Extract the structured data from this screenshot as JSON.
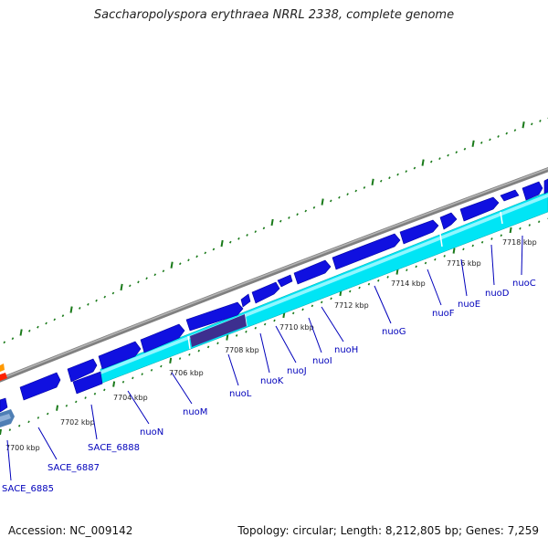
{
  "title": "Saccharopolyspora erythraea NRRL 2338, complete genome",
  "footer": {
    "accession": "Accession: NC_009142",
    "stats": "Topology: circular; Length: 8,212,805 bp; Genes: 7,259"
  },
  "kbp_ticks": [
    "7700 kbp",
    "7702 kbp",
    "7704 kbp",
    "7706 kbp",
    "7708 kbp",
    "7710 kbp",
    "7712 kbp",
    "7714 kbp",
    "7716 kbp",
    "7718 kbp"
  ],
  "gene_labels": [
    "SACE_6885",
    "SACE_6887",
    "SACE_6888",
    "nuoN",
    "nuoM",
    "nuoL",
    "nuoK",
    "nuoJ",
    "nuoI",
    "nuoH",
    "nuoG",
    "nuoF",
    "nuoE",
    "nuoD",
    "nuoC"
  ],
  "colors": {
    "backbone": "#8a8a8a",
    "forward_gene": "#1010e0",
    "reverse_gene": "#00e5f5",
    "highlight_gene": "#3d2f8f",
    "tick_green": "#1a7a1a",
    "label_blue": "#0000bb"
  }
}
